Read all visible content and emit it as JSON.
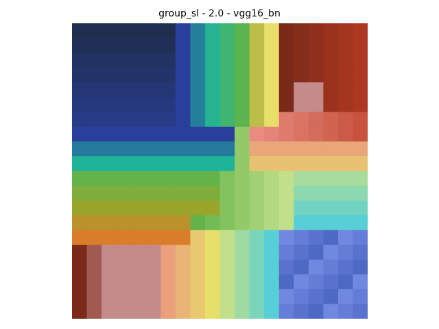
{
  "title": "group_sl - 2.0 - vgg16_bn",
  "image": {
    "description_icon": "attribution-overlay-heatmap",
    "grid_size": 20,
    "palette": {
      "navy": "#1f2d4f",
      "blue": "#2a3f9a",
      "teal": "#1fb39a",
      "green": "#62b44a",
      "olive": "#9aa52b",
      "yellow": "#e8de6a",
      "lime": "#c2e08a",
      "orange": "#d97d2a",
      "salmon": "#e98b80",
      "rose": "#c58a8a",
      "maroon": "#7b2a1a",
      "red": "#b83a22",
      "cyan": "#58cfd6",
      "periwinkle": "#6f88e0",
      "dark-blue": "#2c49a8"
    }
  }
}
